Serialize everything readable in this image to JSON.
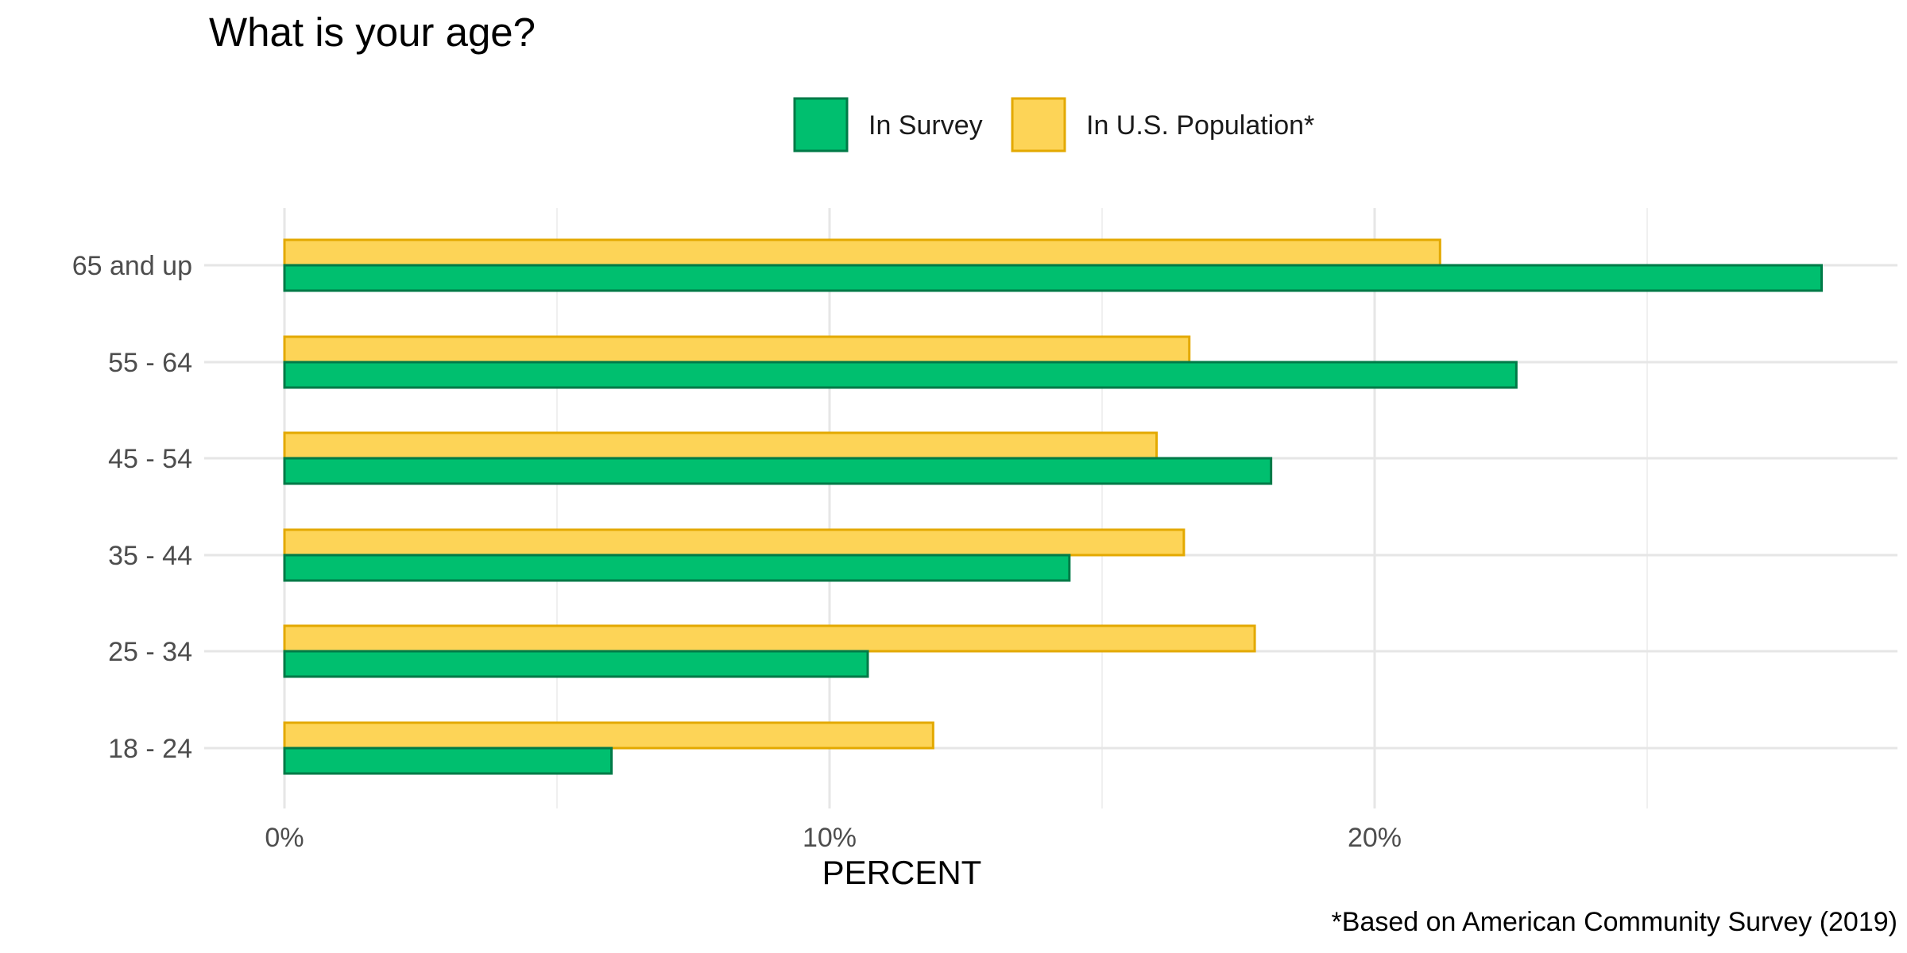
{
  "chart_data": {
    "type": "bar",
    "orientation": "horizontal",
    "title": "What is your age?",
    "xlabel": "PERCENT",
    "ylabel": "",
    "caption": "*Based on American Community Survey (2019)",
    "categories": [
      "18 - 24",
      "25 - 34",
      "35 - 44",
      "45 - 54",
      "55 - 64",
      "65 and up"
    ],
    "series": [
      {
        "name": "In Survey",
        "values": [
          6.0,
          10.7,
          14.4,
          18.1,
          22.6,
          28.2
        ],
        "color": "#00BF6F",
        "stroke": "#007A47"
      },
      {
        "name": "In U.S. Population*",
        "values": [
          11.9,
          17.8,
          16.5,
          16.0,
          16.6,
          21.2
        ],
        "color": "#FDD457",
        "stroke": "#E3A900"
      }
    ],
    "xlim": [
      -1.5,
      29.6
    ],
    "x_ticks": [
      0,
      10,
      20
    ],
    "x_tick_labels": [
      "0%",
      "10%",
      "20%"
    ],
    "x_minor_ticks": [
      5,
      15,
      25
    ],
    "grid": true,
    "legend_position": "top"
  }
}
